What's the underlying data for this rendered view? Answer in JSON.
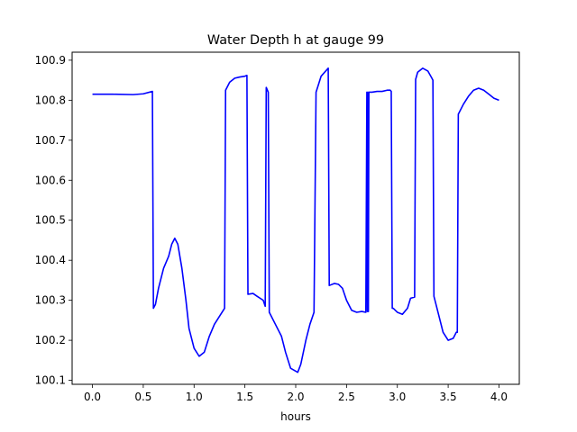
{
  "chart_data": {
    "type": "line",
    "title": "Water Depth h at gauge 99",
    "xlabel": "hours",
    "ylabel": "",
    "xlim": [
      -0.2,
      4.2
    ],
    "ylim": [
      100.09,
      100.92
    ],
    "xticks": [
      0.0,
      0.5,
      1.0,
      1.5,
      2.0,
      2.5,
      3.0,
      3.5,
      4.0
    ],
    "xtick_labels": [
      "0.0",
      "0.5",
      "1.0",
      "1.5",
      "2.0",
      "2.5",
      "3.0",
      "3.5",
      "4.0"
    ],
    "yticks": [
      100.1,
      100.2,
      100.3,
      100.4,
      100.5,
      100.6,
      100.7,
      100.8,
      100.9
    ],
    "ytick_labels": [
      "100.1",
      "100.2",
      "100.3",
      "100.4",
      "100.5",
      "100.6",
      "100.7",
      "100.8",
      "100.9"
    ],
    "grid": false,
    "series": [
      {
        "color": "#0000ff",
        "x": [
          0.0,
          0.2,
          0.4,
          0.5,
          0.59,
          0.6,
          0.62,
          0.65,
          0.7,
          0.75,
          0.78,
          0.81,
          0.84,
          0.88,
          0.92,
          0.95,
          1.0,
          1.05,
          1.1,
          1.15,
          1.2,
          1.3,
          1.31,
          1.35,
          1.4,
          1.45,
          1.5,
          1.52,
          1.53,
          1.58,
          1.62,
          1.68,
          1.7,
          1.71,
          1.73,
          1.74,
          1.8,
          1.86,
          1.9,
          1.95,
          2.02,
          2.05,
          2.1,
          2.14,
          2.18,
          2.2,
          2.25,
          2.32,
          2.33,
          2.38,
          2.42,
          2.46,
          2.5,
          2.55,
          2.6,
          2.65,
          2.69,
          2.7,
          2.705,
          2.71,
          2.715,
          2.72,
          2.75,
          2.8,
          2.85,
          2.9,
          2.93,
          2.94,
          2.95,
          2.96,
          3.0,
          3.05,
          3.1,
          3.13,
          3.17,
          3.18,
          3.2,
          3.25,
          3.3,
          3.34,
          3.35,
          3.36,
          3.4,
          3.45,
          3.5,
          3.55,
          3.58,
          3.59,
          3.6,
          3.65,
          3.7,
          3.75,
          3.8,
          3.85,
          3.9,
          3.95,
          4.0
        ],
        "y": [
          100.815,
          100.815,
          100.814,
          100.816,
          100.822,
          100.28,
          100.29,
          100.33,
          100.38,
          100.41,
          100.44,
          100.455,
          100.44,
          100.38,
          100.3,
          100.23,
          100.18,
          100.16,
          100.17,
          100.21,
          100.24,
          100.28,
          100.825,
          100.845,
          100.855,
          100.858,
          100.86,
          100.862,
          100.315,
          100.317,
          100.31,
          100.3,
          100.285,
          100.832,
          100.82,
          100.27,
          100.24,
          100.21,
          100.17,
          100.13,
          100.12,
          100.14,
          100.2,
          100.24,
          100.27,
          100.82,
          100.86,
          100.88,
          100.337,
          100.342,
          100.34,
          100.33,
          100.3,
          100.275,
          100.27,
          100.272,
          100.27,
          100.82,
          100.272,
          100.82,
          100.272,
          100.82,
          100.82,
          100.822,
          100.822,
          100.825,
          100.825,
          100.822,
          100.28,
          100.28,
          100.27,
          100.265,
          100.28,
          100.305,
          100.308,
          100.852,
          100.87,
          100.88,
          100.873,
          100.855,
          100.85,
          100.31,
          100.27,
          100.22,
          100.2,
          100.205,
          100.22,
          100.22,
          100.765,
          100.79,
          100.81,
          100.825,
          100.83,
          100.825,
          100.815,
          100.805,
          100.8
        ]
      }
    ]
  }
}
